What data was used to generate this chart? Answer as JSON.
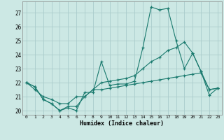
{
  "title": "",
  "xlabel": "Humidex (Indice chaleur)",
  "background_color": "#cce8e4",
  "grid_color": "#aacccc",
  "line_color": "#1a7a6e",
  "xlim": [
    -0.5,
    23.5
  ],
  "ylim": [
    19.7,
    27.8
  ],
  "yticks": [
    20,
    21,
    22,
    23,
    24,
    25,
    26,
    27
  ],
  "xticks": [
    0,
    1,
    2,
    3,
    4,
    5,
    6,
    7,
    8,
    9,
    10,
    11,
    12,
    13,
    14,
    15,
    16,
    17,
    18,
    19,
    20,
    21,
    22,
    23
  ],
  "series": [
    [
      22.0,
      21.7,
      20.8,
      20.5,
      20.0,
      20.3,
      20.3,
      21.0,
      21.5,
      21.5,
      21.6,
      21.7,
      21.8,
      21.9,
      22.0,
      22.1,
      22.2,
      22.3,
      22.4,
      22.5,
      22.6,
      22.7,
      21.5,
      21.6
    ],
    [
      22.0,
      21.7,
      20.8,
      20.5,
      20.0,
      20.2,
      20.0,
      21.3,
      21.3,
      23.5,
      21.8,
      21.9,
      21.9,
      22.1,
      24.5,
      27.4,
      27.2,
      27.3,
      25.0,
      23.0,
      24.1,
      22.8,
      21.1,
      21.6
    ],
    [
      22.0,
      21.5,
      21.0,
      20.8,
      20.5,
      20.5,
      21.0,
      21.0,
      21.5,
      22.0,
      22.1,
      22.2,
      22.3,
      22.5,
      23.0,
      23.5,
      23.8,
      24.3,
      24.5,
      24.9,
      24.1,
      22.8,
      21.5,
      21.6
    ]
  ]
}
